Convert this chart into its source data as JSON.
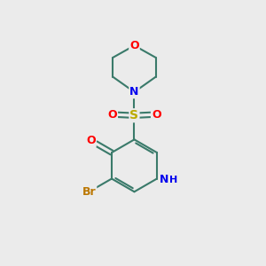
{
  "background_color": "#ebebeb",
  "bond_color": "#3a7a6a",
  "bond_width": 1.5,
  "atom_colors": {
    "O": "#ff0000",
    "N": "#0000ee",
    "S": "#bbaa00",
    "Br": "#bb7700",
    "H": "#0000ee"
  },
  "figsize": [
    3.0,
    3.0
  ],
  "dpi": 100
}
